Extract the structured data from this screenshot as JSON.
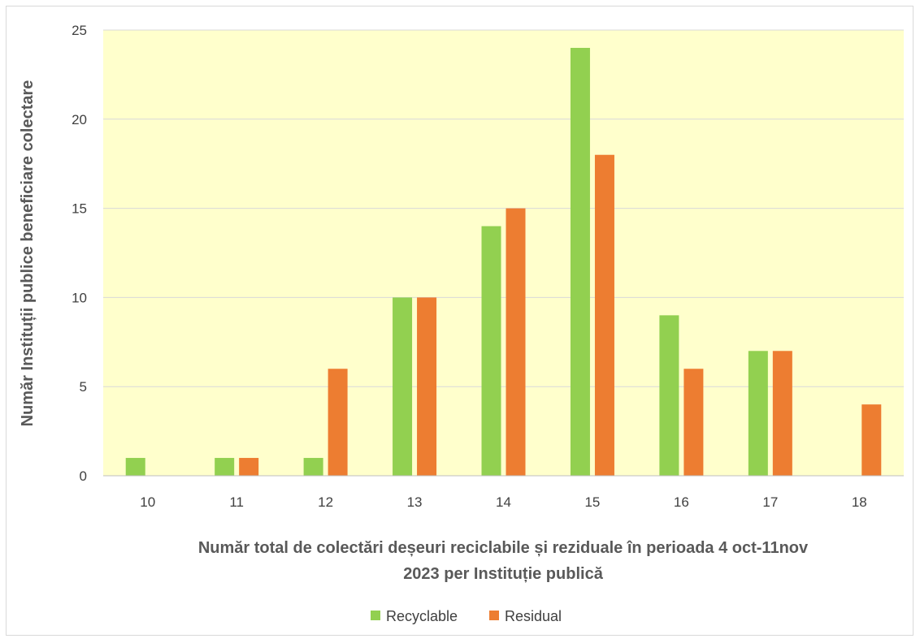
{
  "chart_data": {
    "type": "bar",
    "title": "",
    "xlabel_lines": [
      "Număr total de colectări deșeuri reciclabile și reziduale în perioada 4 oct-11nov",
      "2023 per Instituție publică"
    ],
    "ylabel": "Număr Instituții publice beneficiare colectare",
    "categories": [
      "10",
      "11",
      "12",
      "13",
      "14",
      "15",
      "16",
      "17",
      "18"
    ],
    "series": [
      {
        "name": "Recyclable",
        "color": "#92d050",
        "values": [
          1,
          1,
          1,
          10,
          14,
          24,
          9,
          7,
          0
        ]
      },
      {
        "name": "Residual",
        "color": "#ed7d31",
        "values": [
          0,
          1,
          6,
          10,
          15,
          18,
          6,
          7,
          4
        ]
      }
    ],
    "ylim": [
      0,
      25
    ],
    "yticks": [
      "0",
      "5",
      "10",
      "15",
      "20",
      "25"
    ],
    "grid": true,
    "plot_background": "#ffffcc",
    "gridline_color": "#d9d9d9",
    "legend_position": "bottom"
  }
}
